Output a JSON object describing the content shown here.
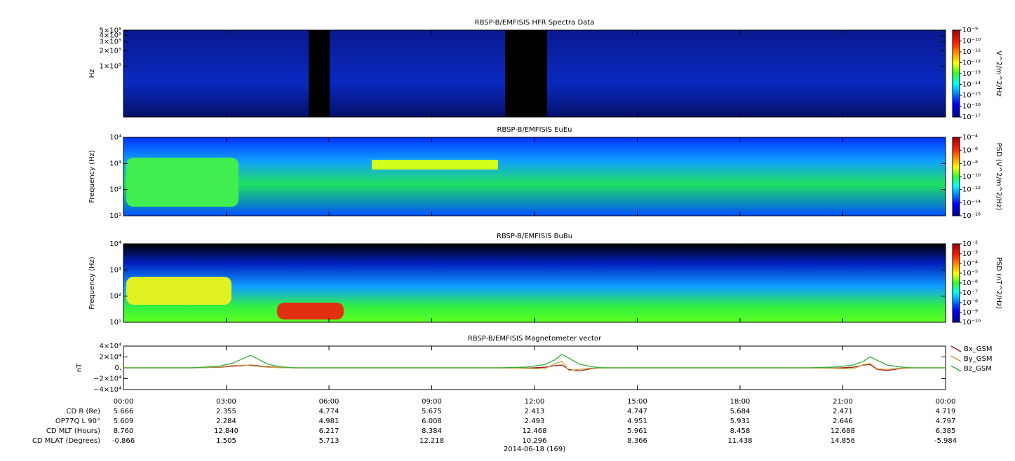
{
  "chart_data": [
    {
      "type": "spectrogram",
      "title": "RBSP-B/EMFISIS  HFR Spectra Data",
      "ylabel": "Hz",
      "log_y": true,
      "ylim": [
        10000,
        510000
      ],
      "yticks": [
        {
          "value": 100000,
          "label": "1×10⁵"
        },
        {
          "value": 200000,
          "label": "2×10⁵"
        },
        {
          "value": 300000,
          "label": "3×10⁵"
        },
        {
          "value": 400000,
          "label": "4×10⁵"
        },
        {
          "value": 500000,
          "label": "5×10⁵"
        }
      ],
      "colorbar": {
        "label": "V^2/m^2/Hz",
        "log": true,
        "lim": [
          1e-17,
          1e-09
        ],
        "ticks": [
          {
            "value": 1e-09,
            "label": "10⁻⁹"
          },
          {
            "value": 1e-10,
            "label": "10⁻¹⁰"
          },
          {
            "value": 1e-11,
            "label": "10⁻¹¹"
          },
          {
            "value": 1e-12,
            "label": "10⁻¹²"
          },
          {
            "value": 1e-13,
            "label": "10⁻¹³"
          },
          {
            "value": 1e-14,
            "label": "10⁻¹⁴"
          },
          {
            "value": 1e-15,
            "label": "10⁻¹⁵"
          },
          {
            "value": 1e-16,
            "label": "10⁻¹⁶"
          },
          {
            "value": 1e-17,
            "label": "10⁻¹⁷"
          }
        ]
      }
    },
    {
      "type": "spectrogram",
      "title": "RBSP-B/EMFISIS  EuEu",
      "ylabel": "Frequency (Hz)",
      "log_y": true,
      "ylim": [
        10,
        10000
      ],
      "yticks": [
        {
          "value": 10,
          "label": "10¹"
        },
        {
          "value": 100,
          "label": "10²"
        },
        {
          "value": 1000,
          "label": "10³"
        },
        {
          "value": 10000,
          "label": "10⁴"
        }
      ],
      "colorbar": {
        "label": "PSD (V^2/m^2/Hz)",
        "log": true,
        "lim": [
          1e-16,
          0.0001
        ],
        "ticks": [
          {
            "value": 0.0001,
            "label": "10⁻⁴"
          },
          {
            "value": 1e-06,
            "label": "10⁻⁶"
          },
          {
            "value": 1e-08,
            "label": "10⁻⁸"
          },
          {
            "value": 1e-10,
            "label": "10⁻¹⁰"
          },
          {
            "value": 1e-12,
            "label": "10⁻¹²"
          },
          {
            "value": 1e-14,
            "label": "10⁻¹⁴"
          },
          {
            "value": 1e-16,
            "label": "10⁻¹⁶"
          }
        ]
      }
    },
    {
      "type": "spectrogram",
      "title": "RBSP-B/EMFISIS  BuBu",
      "ylabel": "Frequency (Hz)",
      "log_y": true,
      "ylim": [
        10,
        10000
      ],
      "yticks": [
        {
          "value": 10,
          "label": "10¹"
        },
        {
          "value": 100,
          "label": "10²"
        },
        {
          "value": 1000,
          "label": "10³"
        },
        {
          "value": 10000,
          "label": "10⁴"
        }
      ],
      "colorbar": {
        "label": "PSD (nT^2/Hz)",
        "log": true,
        "lim": [
          1e-10,
          0.01
        ],
        "ticks": [
          {
            "value": 0.01,
            "label": "10⁻²"
          },
          {
            "value": 0.001,
            "label": "10⁻³"
          },
          {
            "value": 0.0001,
            "label": "10⁻⁴"
          },
          {
            "value": 1e-05,
            "label": "10⁻⁵"
          },
          {
            "value": 1e-06,
            "label": "10⁻⁶"
          },
          {
            "value": 1e-07,
            "label": "10⁻⁷"
          },
          {
            "value": 1e-08,
            "label": "10⁻⁸"
          },
          {
            "value": 1e-09,
            "label": "10⁻⁹"
          },
          {
            "value": 1e-10,
            "label": "10⁻¹⁰"
          }
        ]
      }
    },
    {
      "type": "line",
      "title": "RBSP-B/EMFISIS  Magnetometer vector",
      "ylabel": "nT",
      "ylim": [
        -40000,
        40000
      ],
      "yticks": [
        {
          "value": 40000,
          "label": "4×10⁴"
        },
        {
          "value": 20000,
          "label": "2×10⁴"
        },
        {
          "value": 0,
          "label": "0."
        },
        {
          "value": -20000,
          "label": "−2×10⁴"
        },
        {
          "value": -40000,
          "label": "−4×10⁴"
        }
      ],
      "xlim": [
        0,
        24
      ],
      "xticks": [
        {
          "value": 0,
          "label": "00:00"
        },
        {
          "value": 3,
          "label": "03:00"
        },
        {
          "value": 6,
          "label": "06:00"
        },
        {
          "value": 9,
          "label": "09:00"
        },
        {
          "value": 12,
          "label": "12:00"
        },
        {
          "value": 15,
          "label": "15:00"
        },
        {
          "value": 18,
          "label": "18:00"
        },
        {
          "value": 21,
          "label": "21:00"
        },
        {
          "value": 24,
          "label": "00:00"
        }
      ],
      "x": [
        0,
        2,
        2.8,
        3.2,
        3.5,
        3.7,
        3.9,
        4.2,
        4.6,
        5,
        8,
        11,
        11.8,
        12.3,
        12.6,
        12.8,
        13.0,
        13.3,
        13.7,
        14,
        17,
        20,
        20.8,
        21.3,
        21.6,
        21.8,
        22.0,
        22.3,
        22.7,
        23,
        24
      ],
      "series": [
        {
          "name": "Bx_GSM",
          "color": "#a01e1e",
          "values": [
            0,
            0,
            1000,
            3000,
            4000,
            5000,
            4000,
            2000,
            500,
            0,
            0,
            0,
            -500,
            1000,
            4000,
            5000,
            -3000,
            -6000,
            -1000,
            0,
            0,
            0,
            -500,
            1000,
            5000,
            6000,
            -3000,
            -5000,
            -1000,
            0,
            0
          ]
        },
        {
          "name": "By_GSM",
          "color": "#c8a040",
          "values": [
            0,
            0,
            1500,
            4000,
            5000,
            4000,
            3000,
            1000,
            300,
            0,
            0,
            0,
            -1000,
            -2000,
            8000,
            12000,
            -5000,
            -3000,
            -500,
            0,
            0,
            0,
            -1000,
            -2000,
            6000,
            8000,
            -2000,
            -3000,
            -500,
            0,
            0
          ]
        },
        {
          "name": "Bz_GSM",
          "color": "#30b030",
          "values": [
            0,
            0,
            3000,
            9000,
            17000,
            23000,
            17000,
            7000,
            2000,
            0,
            0,
            0,
            1500,
            6000,
            15000,
            25000,
            18000,
            7000,
            2000,
            0,
            0,
            0,
            1500,
            5000,
            12000,
            20000,
            14000,
            5000,
            1500,
            0,
            0
          ]
        }
      ]
    }
  ],
  "ephemeris": {
    "rows": [
      {
        "label": "CD R (Re)",
        "values": [
          "5.666",
          "2.355",
          "4.774",
          "5.675",
          "2.413",
          "4.747",
          "5.684",
          "2.471",
          "4.719"
        ]
      },
      {
        "label": "OP77Q L 90°",
        "values": [
          "5.609",
          "2.284",
          "4.981",
          "6.008",
          "2.493",
          "4.951",
          "5.931",
          "2.646",
          "4.797"
        ]
      },
      {
        "label": "CD MLT (Hours)",
        "values": [
          "8.760",
          "12.840",
          "6.217",
          "8.384",
          "12.468",
          "5.961",
          "8.458",
          "12.688",
          "6.385"
        ]
      },
      {
        "label": "CD MLAT (Degrees)",
        "values": [
          "-0.866",
          "1.505",
          "5.713",
          "12.218",
          "10.296",
          "8.366",
          "11.438",
          "14.856",
          "-5.984"
        ]
      }
    ],
    "date": "2014-06-18 (169)"
  }
}
